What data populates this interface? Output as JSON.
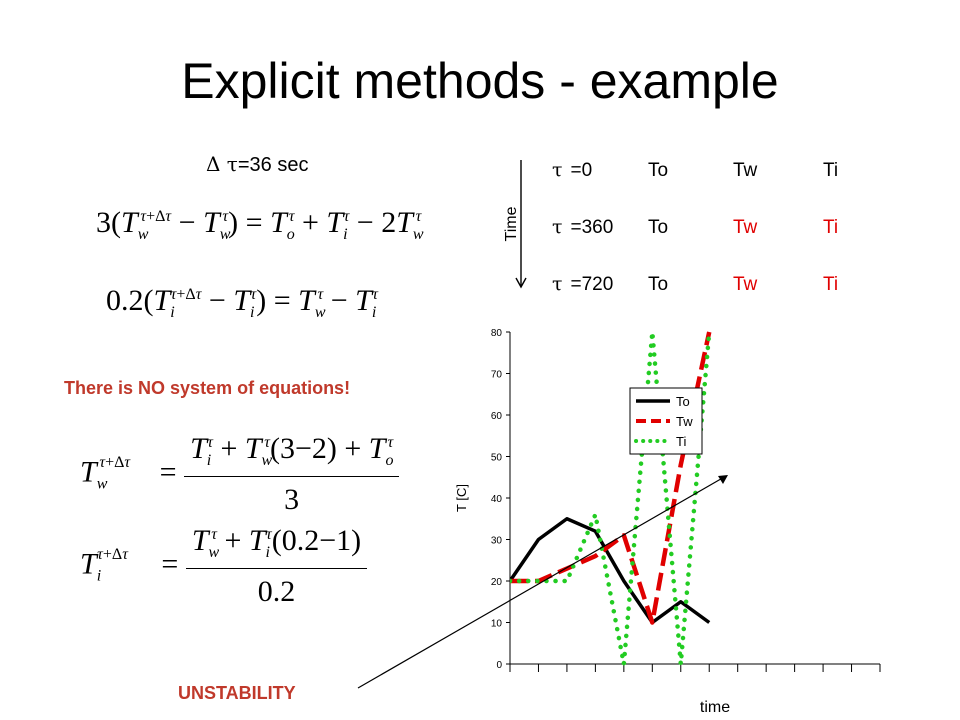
{
  "slide": {
    "title": "Explicit methods  - example",
    "dt_label": "=36 sec",
    "note": "There is NO system of equations!",
    "unstability": "UNSTABILITY"
  },
  "time_table": {
    "axis_label": "Time",
    "rows": [
      {
        "tau": "=0",
        "to": "To",
        "tw": "Tw",
        "ti": "Ti",
        "tw_color": "#000000",
        "ti_color": "#000000"
      },
      {
        "tau": "=360",
        "to": "To",
        "tw": "Tw",
        "ti": "Ti",
        "tw_color": "#e00000",
        "ti_color": "#e00000"
      },
      {
        "tau": "=720",
        "to": "To",
        "tw": "Tw",
        "ti": "Ti",
        "tw_color": "#e00000",
        "ti_color": "#e00000"
      }
    ]
  },
  "equations": {
    "eq1": {
      "lhs_coef": "3",
      "rhs_tail": "2"
    },
    "eq2": {
      "lhs_coef": "0.2"
    },
    "eq3": {
      "factor": "(3−2)",
      "den": "3"
    },
    "eq4": {
      "factor": "(0.2−1)",
      "den": "0.2"
    }
  },
  "chart_data": {
    "type": "line",
    "xlabel": "time",
    "ylabel": "T [C]",
    "ylim": [
      0,
      80
    ],
    "yticks": [
      0,
      10,
      20,
      30,
      40,
      50,
      60,
      70,
      80
    ],
    "x_count": 14,
    "legend_position": "top-center",
    "series": [
      {
        "name": "To",
        "color": "#000000",
        "style": "solid",
        "values": [
          20,
          30,
          35,
          32,
          20,
          10,
          15,
          10
        ]
      },
      {
        "name": "Tw",
        "color": "#e00000",
        "style": "dashed",
        "values": [
          20,
          20,
          23,
          26,
          31,
          10,
          48,
          80
        ]
      },
      {
        "name": "Ti",
        "color": "#22cc22",
        "style": "dotted",
        "values": [
          20,
          20,
          20,
          36,
          0,
          80,
          0,
          80
        ]
      }
    ]
  }
}
